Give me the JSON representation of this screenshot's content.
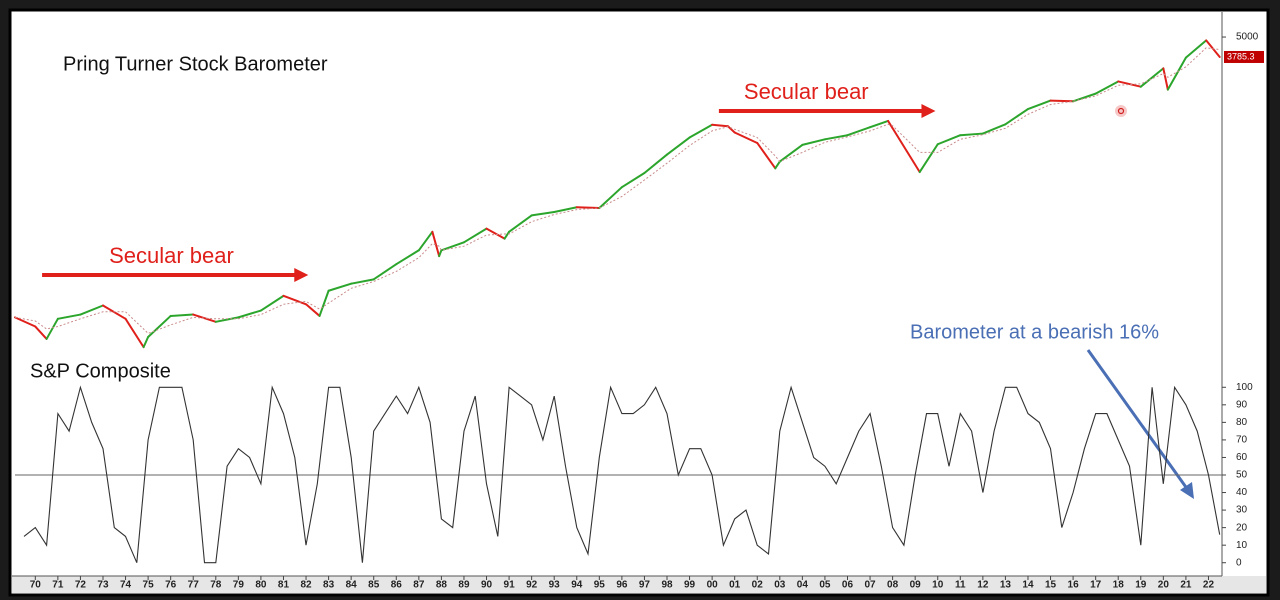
{
  "chart_data": [
    {
      "type": "line",
      "title": "Pring Turner Stock Barometer",
      "log_scale": true,
      "xlim": [
        1969.1,
        2022.6
      ],
      "ylim": [
        68,
        6800
      ],
      "yticks": [
        5000
      ],
      "x": [
        1969.1,
        1970,
        1970.5,
        1971,
        1972,
        1973,
        1974,
        1974.8,
        1975,
        1976,
        1977,
        1978,
        1979,
        1980,
        1981,
        1982,
        1982.6,
        1983,
        1984,
        1985,
        1986,
        1987,
        1987.6,
        1987.9,
        1988,
        1989,
        1990,
        1990.8,
        1991,
        1992,
        1993,
        1994,
        1995,
        1996,
        1997,
        1998,
        1999,
        2000,
        2000.7,
        2001,
        2002,
        2002.8,
        2003,
        2004,
        2005,
        2006,
        2007,
        2007.8,
        2008,
        2009.2,
        2010,
        2011,
        2012,
        2013,
        2014,
        2015,
        2016,
        2017,
        2018,
        2019,
        2020,
        2020.2,
        2021,
        2021.9,
        2022.5
      ],
      "series": [
        {
          "color": "#2ca52c",
          "down_color": "#e0201b",
          "values": [
            100,
            88,
            74,
            98,
            104,
            118,
            98,
            66,
            76,
            102,
            104,
            94,
            100,
            110,
            135,
            120,
            102,
            145,
            160,
            170,
            210,
            255,
            330,
            235,
            255,
            285,
            345,
            300,
            330,
            415,
            435,
            465,
            460,
            615,
            750,
            970,
            1230,
            1470,
            1440,
            1320,
            1140,
            800,
            880,
            1110,
            1200,
            1270,
            1420,
            1550,
            1400,
            760,
            1120,
            1270,
            1300,
            1480,
            1830,
            2060,
            2040,
            2270,
            2690,
            2500,
            3230,
            2400,
            3750,
            4770,
            3785.3
          ]
        },
        {
          "color": "#c98a8a",
          "dashed": true,
          "values": [
            100,
            95,
            85,
            88,
            98,
            108,
            108,
            85,
            80,
            90,
            100,
            98,
            98,
            104,
            120,
            125,
            112,
            122,
            150,
            165,
            190,
            230,
            280,
            270,
            255,
            270,
            315,
            320,
            320,
            380,
            420,
            450,
            460,
            540,
            680,
            860,
            1100,
            1350,
            1430,
            1380,
            1230,
            950,
            880,
            1000,
            1150,
            1240,
            1350,
            1480,
            1450,
            1000,
            1000,
            1200,
            1280,
            1400,
            1700,
            1950,
            2040,
            2200,
            2550,
            2600,
            3000,
            2850,
            3300,
            4300,
            4200
          ]
        }
      ],
      "annotations": [
        {
          "text": "Secular bear",
          "start": 1970.3,
          "end": 1982.1,
          "color": "#e0201b"
        },
        {
          "text": "Secular bear",
          "start": 2000.3,
          "end": 2009.9,
          "color": "#e0201b"
        }
      ]
    },
    {
      "type": "line",
      "title": "S&P Composite",
      "annotation": "Barometer at a bearish 16%",
      "annotation_color": "#4a6fb5",
      "xlim": [
        1969.1,
        2022.6
      ],
      "ylim": [
        -7,
        107
      ],
      "yticks": [
        0,
        10,
        20,
        30,
        40,
        50,
        60,
        70,
        80,
        90,
        100
      ],
      "hline": 50,
      "xticks": [
        {
          "value": 1970,
          "label": "70"
        },
        {
          "value": 1971,
          "label": "71"
        },
        {
          "value": 1972,
          "label": "72"
        },
        {
          "value": 1973,
          "label": "73"
        },
        {
          "value": 1974,
          "label": "74"
        },
        {
          "value": 1975,
          "label": "75"
        },
        {
          "value": 1976,
          "label": "76"
        },
        {
          "value": 1977,
          "label": "77"
        },
        {
          "value": 1978,
          "label": "78"
        },
        {
          "value": 1979,
          "label": "79"
        },
        {
          "value": 1980,
          "label": "80"
        },
        {
          "value": 1981,
          "label": "81"
        },
        {
          "value": 1982,
          "label": "82"
        },
        {
          "value": 1983,
          "label": "83"
        },
        {
          "value": 1984,
          "label": "84"
        },
        {
          "value": 1985,
          "label": "85"
        },
        {
          "value": 1986,
          "label": "86"
        },
        {
          "value": 1987,
          "label": "87"
        },
        {
          "value": 1988,
          "label": "88"
        },
        {
          "value": 1989,
          "label": "89"
        },
        {
          "value": 1990,
          "label": "90"
        },
        {
          "value": 1991,
          "label": "91"
        },
        {
          "value": 1992,
          "label": "92"
        },
        {
          "value": 1993,
          "label": "93"
        },
        {
          "value": 1994,
          "label": "94"
        },
        {
          "value": 1995,
          "label": "95"
        },
        {
          "value": 1996,
          "label": "96"
        },
        {
          "value": 1997,
          "label": "97"
        },
        {
          "value": 1998,
          "label": "98"
        },
        {
          "value": 1999,
          "label": "99"
        },
        {
          "value": 2000,
          "label": "00"
        },
        {
          "value": 2001,
          "label": "01"
        },
        {
          "value": 2002,
          "label": "02"
        },
        {
          "value": 2003,
          "label": "03"
        },
        {
          "value": 2004,
          "label": "04"
        },
        {
          "value": 2005,
          "label": "05"
        },
        {
          "value": 2006,
          "label": "06"
        },
        {
          "value": 2007,
          "label": "07"
        },
        {
          "value": 2008,
          "label": "08"
        },
        {
          "value": 2009,
          "label": "09"
        },
        {
          "value": 2010,
          "label": "10"
        },
        {
          "value": 2011,
          "label": "11"
        },
        {
          "value": 2012,
          "label": "12"
        },
        {
          "value": 2013,
          "label": "13"
        },
        {
          "value": 2014,
          "label": "14"
        },
        {
          "value": 2015,
          "label": "15"
        },
        {
          "value": 2016,
          "label": "16"
        },
        {
          "value": 2017,
          "label": "17"
        },
        {
          "value": 2018,
          "label": "18"
        },
        {
          "value": 2019,
          "label": "19"
        },
        {
          "value": 2020,
          "label": "20"
        },
        {
          "value": 2021,
          "label": "21"
        },
        {
          "value": 2022,
          "label": "22"
        }
      ],
      "x": [
        1969.5,
        1970,
        1970.5,
        1971,
        1971.5,
        1972,
        1972.5,
        1973,
        1973.5,
        1974,
        1974.5,
        1975,
        1975.5,
        1976,
        1976.5,
        1977,
        1977.5,
        1978,
        1978.5,
        1979,
        1979.5,
        1980,
        1980.5,
        1981,
        1981.5,
        1982,
        1982.5,
        1983,
        1983.5,
        1984,
        1984.5,
        1985,
        1985.5,
        1986,
        1986.5,
        1987,
        1987.5,
        1988,
        1988.5,
        1989,
        1989.5,
        1990,
        1990.5,
        1991,
        1991.5,
        1992,
        1992.5,
        1993,
        1993.5,
        1994,
        1994.5,
        1995,
        1995.5,
        1996,
        1996.5,
        1997,
        1997.5,
        1998,
        1998.5,
        1999,
        1999.5,
        2000,
        2000.5,
        2001,
        2001.5,
        2002,
        2002.5,
        2003,
        2003.5,
        2004,
        2004.5,
        2005,
        2005.5,
        2006,
        2006.5,
        2007,
        2007.5,
        2008,
        2008.5,
        2009,
        2009.5,
        2010,
        2010.5,
        2011,
        2011.5,
        2012,
        2012.5,
        2013,
        2013.5,
        2014,
        2014.5,
        2015,
        2015.5,
        2016,
        2016.5,
        2017,
        2017.5,
        2018,
        2018.5,
        2019,
        2019.5,
        2020,
        2020.5,
        2021,
        2021.5,
        2022,
        2022.5
      ],
      "series": [
        {
          "color": "#333333",
          "values": [
            15,
            20,
            10,
            85,
            75,
            100,
            80,
            65,
            20,
            15,
            0,
            70,
            100,
            100,
            100,
            70,
            0,
            0,
            55,
            65,
            60,
            45,
            100,
            85,
            60,
            10,
            45,
            100,
            100,
            60,
            0,
            75,
            85,
            95,
            85,
            100,
            80,
            25,
            20,
            75,
            95,
            45,
            15,
            100,
            95,
            90,
            70,
            95,
            55,
            20,
            5,
            60,
            100,
            85,
            85,
            90,
            100,
            85,
            50,
            65,
            65,
            50,
            10,
            25,
            30,
            10,
            5,
            75,
            100,
            80,
            60,
            55,
            45,
            60,
            75,
            85,
            55,
            20,
            10,
            50,
            85,
            85,
            55,
            85,
            75,
            40,
            75,
            100,
            100,
            85,
            80,
            65,
            20,
            40,
            65,
            85,
            85,
            70,
            55,
            10,
            100,
            45,
            100,
            90,
            75,
            50,
            16
          ]
        }
      ]
    }
  ]
}
